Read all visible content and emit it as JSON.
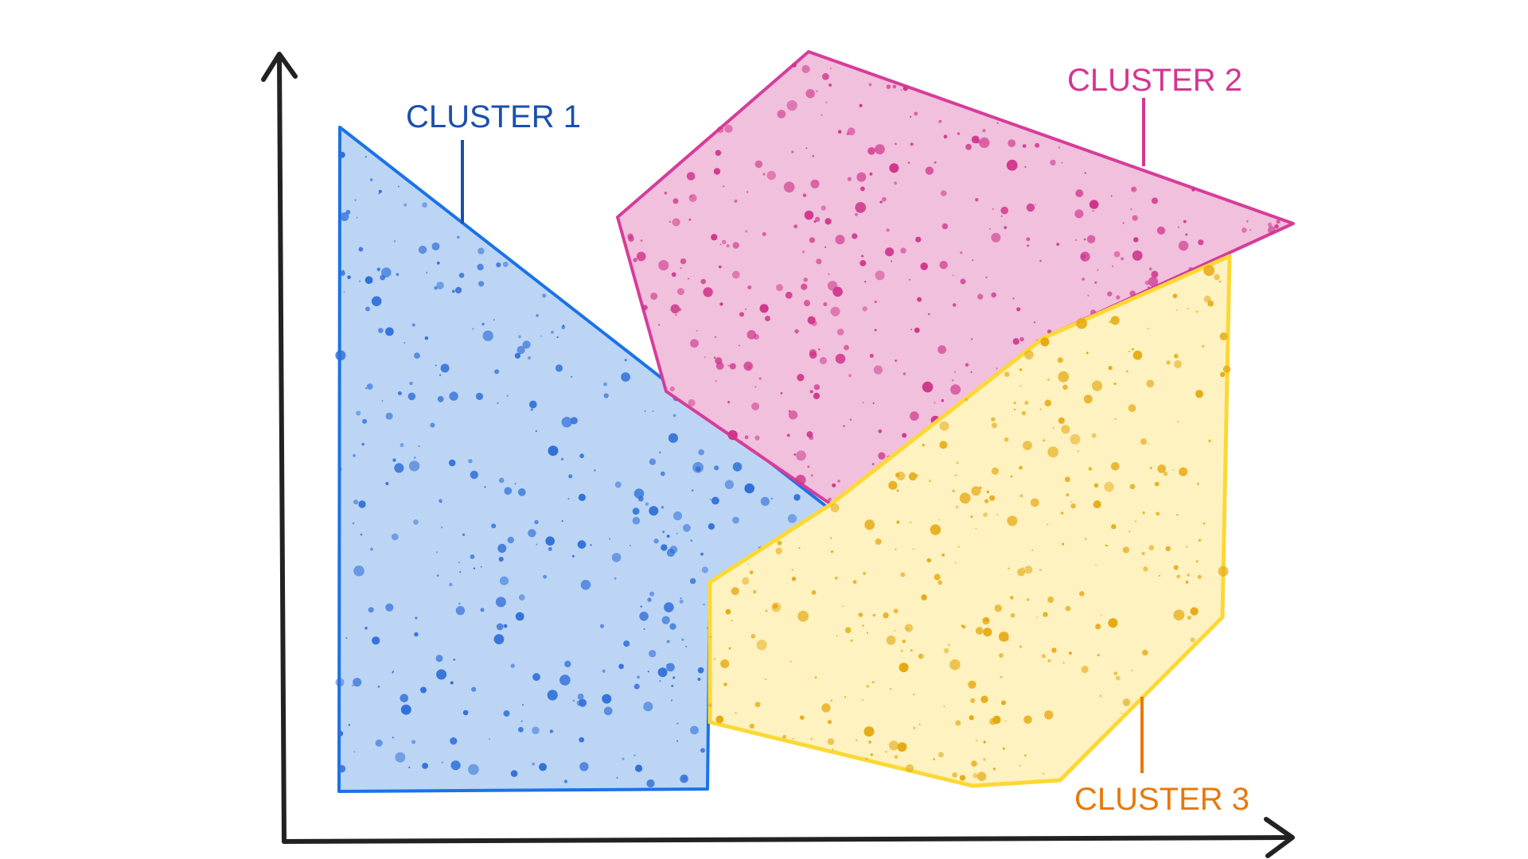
{
  "clusters": [
    {
      "label": "CLUSTER 1",
      "stroke": "#1a73e8",
      "fill": "#bcd5f5",
      "dot": "#2f6fd8",
      "text_color": "#1a4fb0"
    },
    {
      "label": "CLUSTER 2",
      "stroke": "#d63d9a",
      "fill": "#f0c0dc",
      "dot": "#d0358c",
      "text_color": "#d6358f"
    },
    {
      "label": "CLUSTER 3",
      "stroke": "#fdd835",
      "fill": "#fdf2c0",
      "dot": "#e6a910",
      "text_color": "#e8790a"
    }
  ],
  "axis_color": "#222222"
}
